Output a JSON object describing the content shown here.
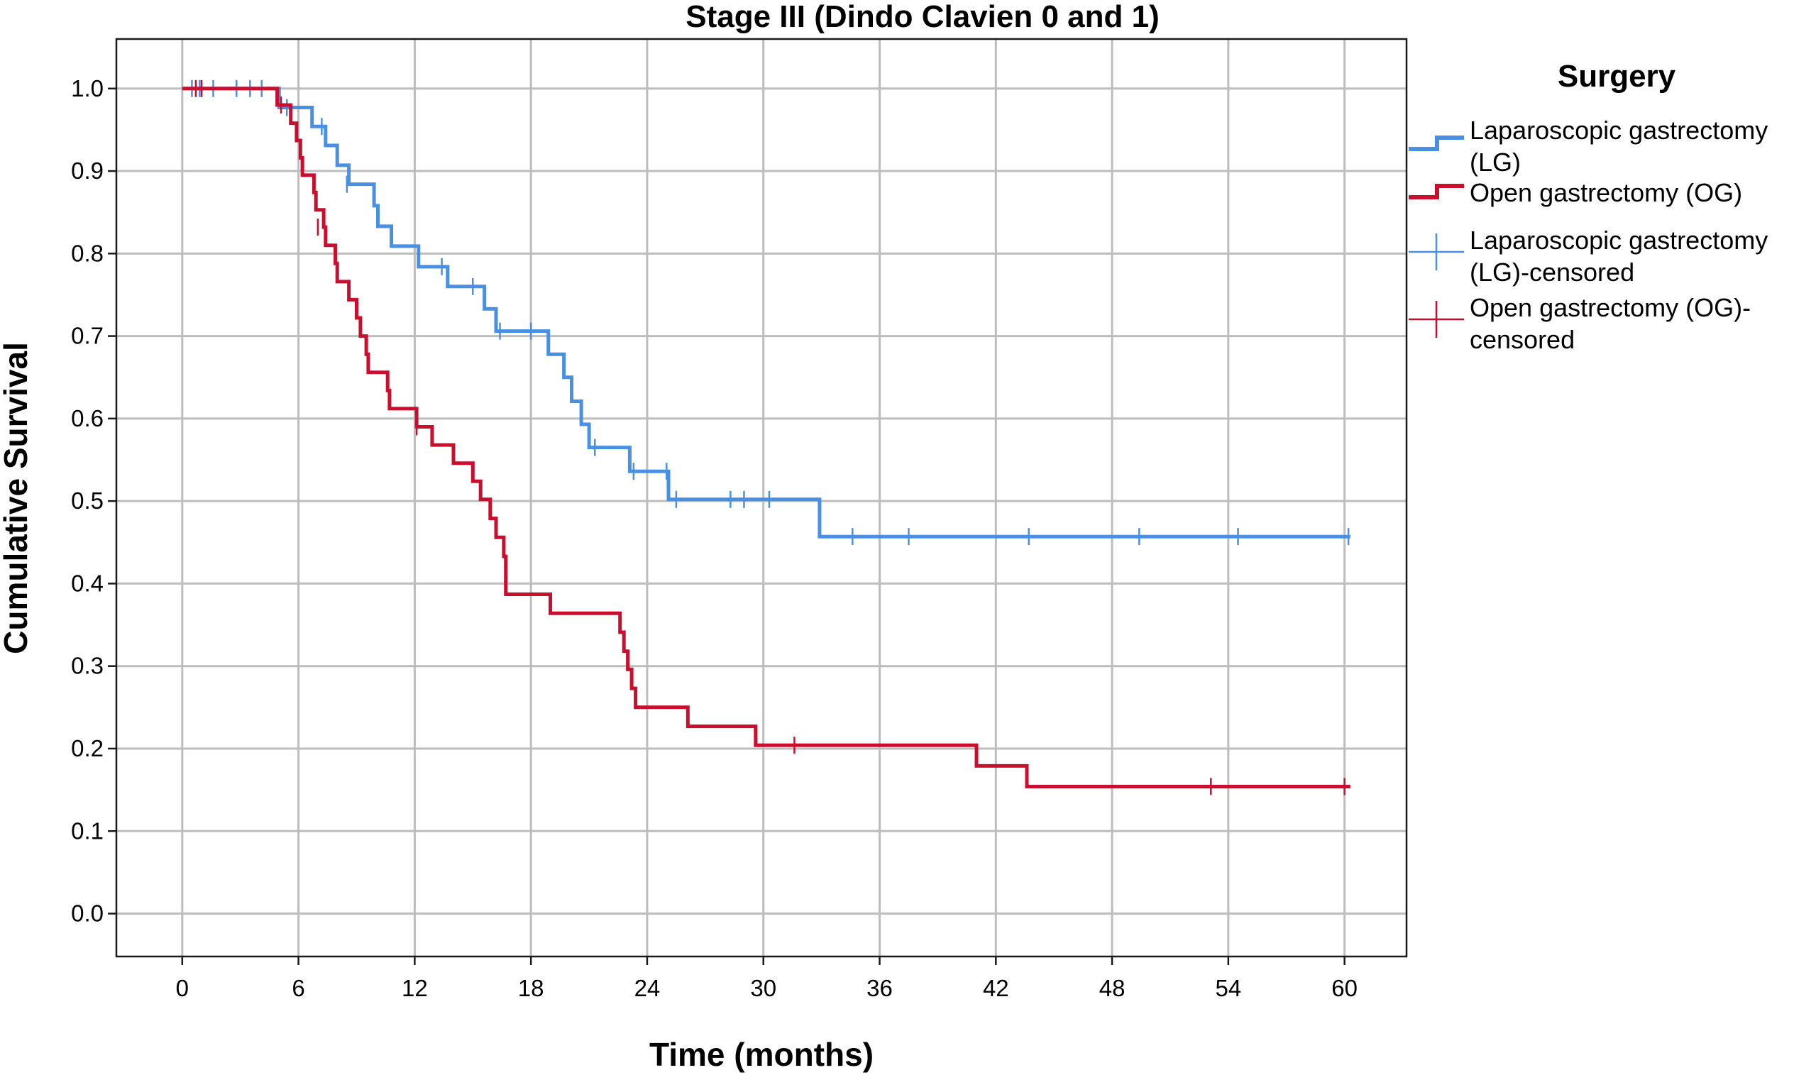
{
  "chart_data": {
    "type": "line",
    "title": "Stage III (Dindo Clavien 0 and 1)",
    "xlabel": "Time (months)",
    "ylabel": "Cumulative Survival",
    "xlim": [
      -3.4,
      63.2
    ],
    "ylim": [
      -0.052,
      1.06
    ],
    "x_ticks": [
      "0",
      "6",
      "12",
      "18",
      "24",
      "30",
      "36",
      "42",
      "48",
      "54",
      "60"
    ],
    "y_ticks": [
      "0.0",
      "0.1",
      "0.2",
      "0.3",
      "0.4",
      "0.5",
      "0.6",
      "0.7",
      "0.8",
      "0.9",
      "1.0"
    ],
    "grid": true,
    "legend_position": "right",
    "legend_title": "Surgery",
    "series": [
      {
        "name": "Laparoscopic gastrectomy (LG)",
        "legend_lines": [
          "Laparoscopic gastrectomy",
          "(LG)"
        ],
        "color": "#4a90e2",
        "style": "step",
        "points": [
          [
            0,
            1.0
          ],
          [
            5.0,
            1.0
          ],
          [
            5.0,
            0.977
          ],
          [
            6.7,
            0.977
          ],
          [
            6.7,
            0.954
          ],
          [
            7.4,
            0.954
          ],
          [
            7.4,
            0.931
          ],
          [
            8.0,
            0.931
          ],
          [
            8.0,
            0.907
          ],
          [
            8.6,
            0.907
          ],
          [
            8.6,
            0.884
          ],
          [
            9.9,
            0.884
          ],
          [
            9.9,
            0.858
          ],
          [
            10.1,
            0.858
          ],
          [
            10.1,
            0.833
          ],
          [
            10.8,
            0.833
          ],
          [
            10.8,
            0.809
          ],
          [
            12.2,
            0.809
          ],
          [
            12.2,
            0.784
          ],
          [
            13.7,
            0.784
          ],
          [
            13.7,
            0.76
          ],
          [
            15.6,
            0.76
          ],
          [
            15.6,
            0.733
          ],
          [
            16.2,
            0.733
          ],
          [
            16.2,
            0.706
          ],
          [
            18.9,
            0.706
          ],
          [
            18.9,
            0.678
          ],
          [
            19.7,
            0.678
          ],
          [
            19.7,
            0.65
          ],
          [
            20.1,
            0.65
          ],
          [
            20.1,
            0.621
          ],
          [
            20.6,
            0.621
          ],
          [
            20.6,
            0.593
          ],
          [
            21.0,
            0.593
          ],
          [
            21.0,
            0.565
          ],
          [
            23.1,
            0.565
          ],
          [
            23.1,
            0.536
          ],
          [
            25.1,
            0.536
          ],
          [
            25.1,
            0.502
          ],
          [
            32.9,
            0.502
          ],
          [
            32.9,
            0.457
          ],
          [
            60.3,
            0.457
          ]
        ],
        "censored": [
          [
            0.5,
            1.0
          ],
          [
            0.9,
            1.0
          ],
          [
            1.6,
            1.0
          ],
          [
            2.8,
            1.0
          ],
          [
            3.5,
            1.0
          ],
          [
            4.1,
            1.0
          ],
          [
            5.4,
            0.977
          ],
          [
            7.2,
            0.954
          ],
          [
            8.5,
            0.884
          ],
          [
            13.4,
            0.784
          ],
          [
            15.0,
            0.76
          ],
          [
            16.4,
            0.706
          ],
          [
            18.0,
            0.706
          ],
          [
            21.3,
            0.565
          ],
          [
            23.3,
            0.536
          ],
          [
            25.0,
            0.536
          ],
          [
            25.5,
            0.502
          ],
          [
            28.3,
            0.502
          ],
          [
            29.0,
            0.502
          ],
          [
            30.3,
            0.502
          ],
          [
            34.6,
            0.457
          ],
          [
            37.5,
            0.457
          ],
          [
            43.7,
            0.457
          ],
          [
            49.4,
            0.457
          ],
          [
            54.5,
            0.457
          ],
          [
            60.2,
            0.457
          ]
        ]
      },
      {
        "name": "Open gastrectomy (OG)",
        "legend_lines": [
          "Open gastrectomy (OG)"
        ],
        "color": "#c8102e",
        "style": "step",
        "points": [
          [
            0,
            1.0
          ],
          [
            4.9,
            1.0
          ],
          [
            4.9,
            0.98
          ],
          [
            5.6,
            0.98
          ],
          [
            5.6,
            0.958
          ],
          [
            5.9,
            0.958
          ],
          [
            5.9,
            0.937
          ],
          [
            6.1,
            0.937
          ],
          [
            6.1,
            0.916
          ],
          [
            6.2,
            0.916
          ],
          [
            6.2,
            0.895
          ],
          [
            6.8,
            0.895
          ],
          [
            6.8,
            0.874
          ],
          [
            6.9,
            0.874
          ],
          [
            6.9,
            0.853
          ],
          [
            7.3,
            0.853
          ],
          [
            7.3,
            0.832
          ],
          [
            7.4,
            0.832
          ],
          [
            7.4,
            0.81
          ],
          [
            7.9,
            0.81
          ],
          [
            7.9,
            0.788
          ],
          [
            8.0,
            0.788
          ],
          [
            8.0,
            0.766
          ],
          [
            8.6,
            0.766
          ],
          [
            8.6,
            0.744
          ],
          [
            9.0,
            0.744
          ],
          [
            9.0,
            0.722
          ],
          [
            9.2,
            0.722
          ],
          [
            9.2,
            0.7
          ],
          [
            9.5,
            0.7
          ],
          [
            9.5,
            0.678
          ],
          [
            9.6,
            0.678
          ],
          [
            9.6,
            0.656
          ],
          [
            10.6,
            0.656
          ],
          [
            10.6,
            0.634
          ],
          [
            10.7,
            0.634
          ],
          [
            10.7,
            0.612
          ],
          [
            12.1,
            0.612
          ],
          [
            12.1,
            0.59
          ],
          [
            12.9,
            0.59
          ],
          [
            12.9,
            0.568
          ],
          [
            14.0,
            0.568
          ],
          [
            14.0,
            0.546
          ],
          [
            15.0,
            0.546
          ],
          [
            15.0,
            0.524
          ],
          [
            15.4,
            0.524
          ],
          [
            15.4,
            0.502
          ],
          [
            15.9,
            0.502
          ],
          [
            15.9,
            0.479
          ],
          [
            16.2,
            0.479
          ],
          [
            16.2,
            0.456
          ],
          [
            16.6,
            0.456
          ],
          [
            16.6,
            0.433
          ],
          [
            16.7,
            0.433
          ],
          [
            16.7,
            0.387
          ],
          [
            19.0,
            0.387
          ],
          [
            19.0,
            0.364
          ],
          [
            22.6,
            0.364
          ],
          [
            22.6,
            0.341
          ],
          [
            22.8,
            0.341
          ],
          [
            22.8,
            0.318
          ],
          [
            23.0,
            0.318
          ],
          [
            23.0,
            0.296
          ],
          [
            23.2,
            0.296
          ],
          [
            23.2,
            0.273
          ],
          [
            23.4,
            0.273
          ],
          [
            23.4,
            0.25
          ],
          [
            26.1,
            0.25
          ],
          [
            26.1,
            0.227
          ],
          [
            29.6,
            0.227
          ],
          [
            29.6,
            0.204
          ],
          [
            41.0,
            0.204
          ],
          [
            41.0,
            0.179
          ],
          [
            43.6,
            0.179
          ],
          [
            43.6,
            0.154
          ],
          [
            60.3,
            0.154
          ]
        ],
        "censored": [
          [
            0.7,
            1.0
          ],
          [
            1.0,
            1.0
          ],
          [
            5.1,
            0.98
          ],
          [
            7.0,
            0.832
          ],
          [
            12.1,
            0.59
          ],
          [
            31.6,
            0.204
          ],
          [
            53.1,
            0.154
          ],
          [
            60.0,
            0.154
          ]
        ]
      }
    ],
    "legend_entries": [
      {
        "kind": "line",
        "series": 0,
        "lines": [
          "Laparoscopic gastrectomy",
          "(LG)"
        ]
      },
      {
        "kind": "line",
        "series": 1,
        "lines": [
          "Open gastrectomy (OG)"
        ]
      },
      {
        "kind": "censor",
        "series": 0,
        "lines": [
          "Laparoscopic gastrectomy",
          "(LG)-censored"
        ]
      },
      {
        "kind": "censor",
        "series": 1,
        "lines": [
          "Open gastrectomy (OG)-",
          "censored"
        ]
      }
    ]
  }
}
